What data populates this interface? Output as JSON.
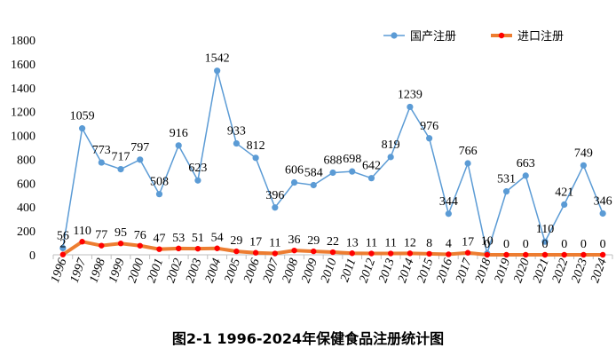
{
  "caption": "图2-1 1996-2024年保健食品注册统计图",
  "chart_data": {
    "type": "line",
    "title": "",
    "xlabel": "",
    "ylabel": "",
    "ylim": [
      0,
      1800
    ],
    "yticks": [
      "0",
      "200",
      "400",
      "600",
      "800",
      "1000",
      "1200",
      "1400",
      "1600",
      "1800"
    ],
    "grid": false,
    "legend_position": "top-right",
    "x": [
      "1996",
      "1997",
      "1998",
      "1999",
      "2000",
      "2001",
      "2002",
      "2003",
      "2004",
      "2005",
      "2006",
      "2007",
      "2008",
      "2009",
      "2010",
      "2011",
      "2012",
      "2013",
      "2014",
      "2015",
      "2016",
      "2017",
      "2018",
      "2019",
      "2020",
      "2021",
      "2022",
      "2023",
      "2024"
    ],
    "series": [
      {
        "name": "国产注册",
        "color": "#5b9bd5",
        "values": [
          56,
          1059,
          773,
          717,
          797,
          508,
          916,
          623,
          1542,
          933,
          812,
          396,
          606,
          584,
          688,
          698,
          642,
          819,
          1239,
          976,
          344,
          766,
          10,
          531,
          663,
          110,
          421,
          749,
          346
        ]
      },
      {
        "name": "进口注册",
        "color": "#ed7d31",
        "marker_color": "#ff0000",
        "values": [
          2,
          110,
          77,
          95,
          76,
          47,
          53,
          51,
          54,
          29,
          17,
          11,
          36,
          29,
          22,
          13,
          11,
          11,
          12,
          8,
          4,
          17,
          0,
          0,
          0,
          0,
          0,
          0,
          0
        ]
      }
    ]
  }
}
